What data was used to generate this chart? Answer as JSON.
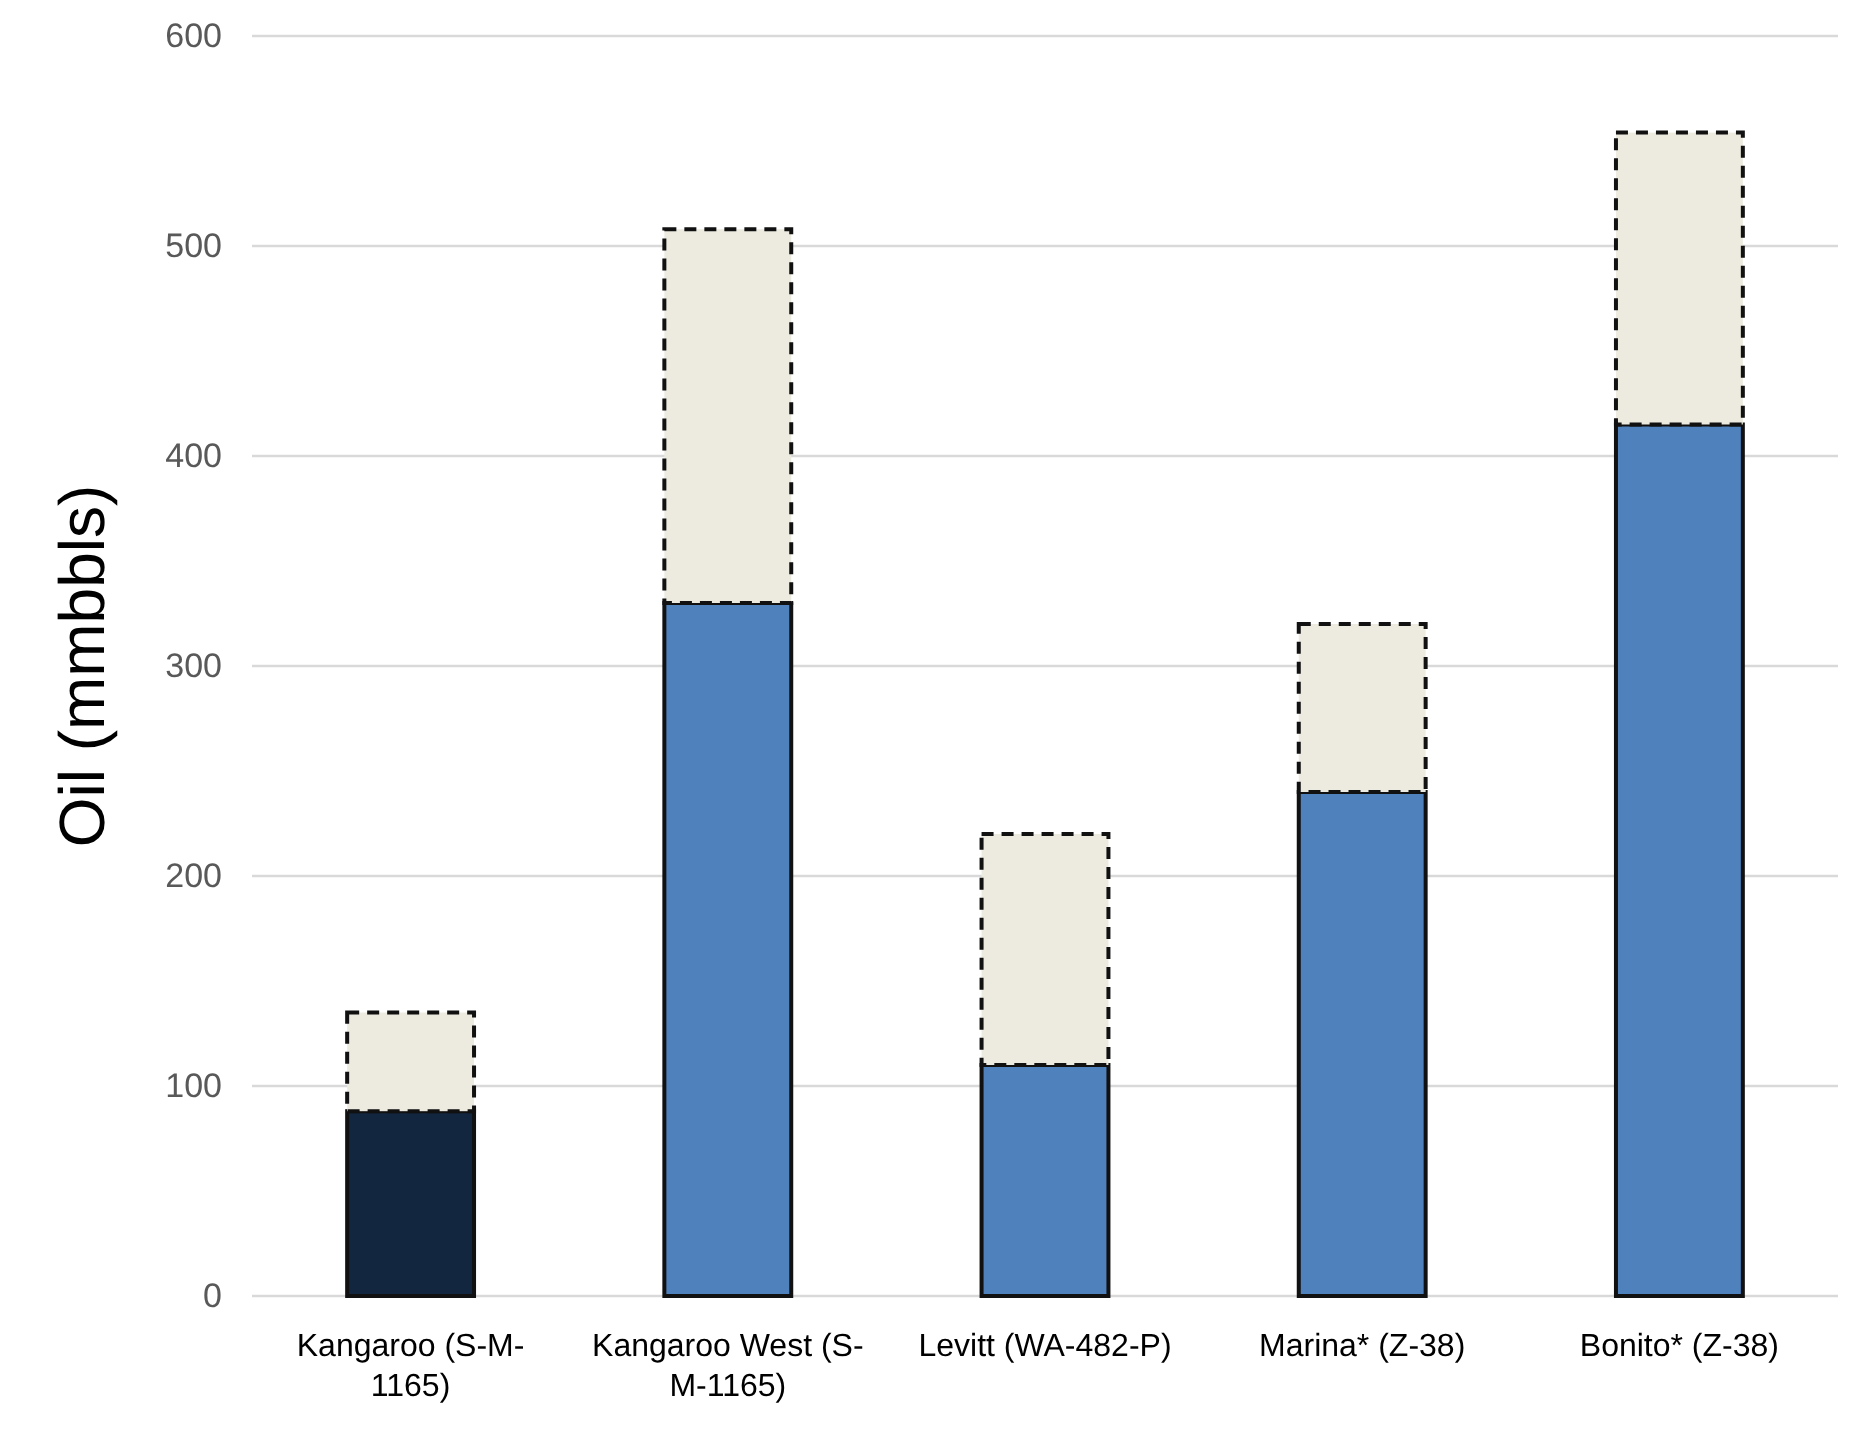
{
  "chart_data": {
    "type": "bar",
    "stacked": true,
    "ylabel": "Oil (mmbbls)",
    "categories": [
      "Kangaroo (S-M-1165)",
      "Kangaroo West (S-M-1165)",
      "Levitt (WA-482-P)",
      "Marina* (Z-38)",
      "Bonito* (Z-38)"
    ],
    "series": [
      {
        "colors": [
          "#132640",
          "#4f81bd",
          "#4f81bd",
          "#4f81bd",
          "#4f81bd"
        ],
        "values": [
          88,
          330,
          110,
          240,
          415
        ],
        "line_style": "solid"
      },
      {
        "color": "#edebe0",
        "values": [
          47,
          178,
          110,
          80,
          139
        ],
        "line_style": "dashed"
      }
    ],
    "ylim": [
      0,
      600
    ],
    "yticks": [
      0,
      100,
      200,
      300,
      400,
      500,
      600
    ],
    "grid": "y"
  }
}
